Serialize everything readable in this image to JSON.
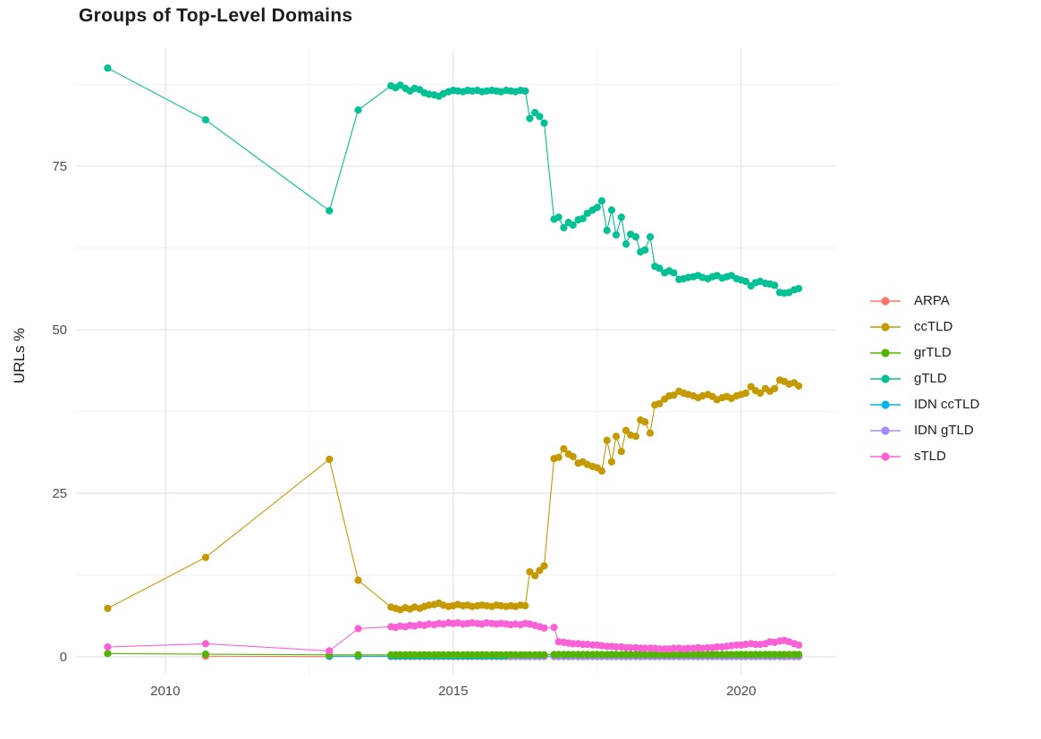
{
  "chart_data": {
    "type": "line",
    "title": "Groups of Top-Level Domains",
    "xlabel": "",
    "ylabel": "URLs %",
    "xlim": [
      2008.45,
      2021.65
    ],
    "ylim": [
      -2.73,
      92.9
    ],
    "x_ticks": [
      2010,
      2015,
      2020
    ],
    "y_ticks": [
      0,
      25,
      50,
      75
    ],
    "x_minor_gridlines": [
      2012.5,
      2017.5
    ],
    "y_minor_gridlines": [
      12.5,
      37.5,
      62.5,
      87.5
    ],
    "grid": true,
    "legend_position": "right",
    "marker": "point",
    "draw_order": [
      "ARPA",
      "IDN ccTLD",
      "IDN gTLD",
      "grTLD",
      "ccTLD",
      "gTLD",
      "sTLD"
    ],
    "x_groups": {
      "early": [
        2009.0,
        2010.7,
        2012.85,
        2013.35
      ],
      "dense1": [
        2013.92,
        2014.0,
        2014.08,
        2014.17,
        2014.25,
        2014.33,
        2014.42,
        2014.5,
        2014.58,
        2014.67,
        2014.75,
        2014.83,
        2014.92,
        2015.0,
        2015.08,
        2015.17,
        2015.25,
        2015.33,
        2015.42,
        2015.5,
        2015.58,
        2015.67,
        2015.75,
        2015.83,
        2015.92,
        2016.0,
        2016.08,
        2016.17,
        2016.25,
        2016.33,
        2016.42,
        2016.5,
        2016.58
      ],
      "dense2": [
        2016.75,
        2016.83,
        2016.92,
        2017.0,
        2017.08,
        2017.17,
        2017.25,
        2017.33,
        2017.42,
        2017.5,
        2017.58,
        2017.67,
        2017.75,
        2017.83,
        2017.92,
        2018.0,
        2018.08,
        2018.17,
        2018.25,
        2018.33,
        2018.42,
        2018.5,
        2018.58,
        2018.67,
        2018.75,
        2018.83,
        2018.92,
        2019.0,
        2019.08,
        2019.17,
        2019.25,
        2019.33,
        2019.42,
        2019.5,
        2019.58,
        2019.67,
        2019.75,
        2019.83,
        2019.92,
        2020.0,
        2020.08,
        2020.17,
        2020.25,
        2020.33,
        2020.42,
        2020.5,
        2020.58,
        2020.67,
        2020.75,
        2020.83,
        2020.92,
        2021.0
      ]
    },
    "series": [
      {
        "name": "ARPA",
        "color": "#F8766D",
        "values": {
          "early": [
            null,
            0.1,
            0.05,
            0.05
          ],
          "dense1": {
            "const": 0.05
          },
          "dense2": {
            "const": 0.05
          }
        }
      },
      {
        "name": "ccTLD",
        "color": "#C49A00",
        "values": {
          "early": [
            7.4,
            15.2,
            30.2,
            11.7
          ],
          "dense1": [
            7.6,
            7.4,
            7.2,
            7.5,
            7.3,
            7.6,
            7.4,
            7.7,
            7.9,
            8.0,
            8.2,
            7.9,
            7.7,
            7.8,
            8.0,
            7.8,
            7.9,
            7.7,
            7.8,
            7.9,
            7.8,
            7.7,
            7.9,
            7.8,
            7.7,
            7.8,
            7.7,
            7.9,
            7.8,
            13.0,
            12.4,
            13.2,
            13.9
          ],
          "dense2": [
            30.3,
            30.5,
            31.8,
            31.0,
            30.6,
            29.6,
            29.8,
            29.4,
            29.1,
            28.9,
            28.4,
            33.1,
            29.8,
            33.7,
            31.4,
            34.6,
            33.9,
            33.7,
            36.2,
            35.9,
            34.2,
            38.5,
            38.7,
            39.4,
            39.9,
            40.0,
            40.6,
            40.3,
            40.1,
            39.9,
            39.6,
            39.9,
            40.1,
            39.8,
            39.3,
            39.6,
            39.8,
            39.5,
            39.9,
            40.1,
            40.3,
            41.3,
            40.7,
            40.3,
            41.0,
            40.6,
            41.0,
            42.3,
            42.1,
            41.7,
            41.9,
            41.4
          ]
        }
      },
      {
        "name": "grTLD",
        "color": "#53B400",
        "values": {
          "early": [
            0.5,
            0.4,
            0.3,
            0.3
          ],
          "dense1": {
            "const": 0.3
          },
          "dense2": {
            "const": 0.35
          }
        }
      },
      {
        "name": "gTLD",
        "color": "#00C094",
        "values": {
          "early": [
            90.0,
            82.1,
            68.2,
            83.6
          ],
          "dense1": [
            87.3,
            87.0,
            87.4,
            86.9,
            86.5,
            86.9,
            86.7,
            86.2,
            86.0,
            85.9,
            85.7,
            86.1,
            86.4,
            86.6,
            86.5,
            86.4,
            86.6,
            86.5,
            86.6,
            86.4,
            86.5,
            86.6,
            86.5,
            86.4,
            86.6,
            86.5,
            86.4,
            86.6,
            86.5,
            82.3,
            83.2,
            82.6,
            81.6
          ],
          "dense2": [
            66.9,
            67.2,
            65.6,
            66.4,
            66.0,
            66.8,
            67.0,
            67.8,
            68.3,
            68.7,
            69.7,
            65.2,
            68.3,
            64.5,
            67.2,
            63.1,
            64.6,
            64.2,
            61.9,
            62.2,
            64.2,
            59.7,
            59.4,
            58.7,
            59.0,
            58.7,
            57.7,
            57.8,
            58.0,
            58.1,
            58.3,
            58.0,
            57.8,
            58.1,
            58.3,
            57.9,
            58.1,
            58.3,
            57.8,
            57.6,
            57.4,
            56.7,
            57.2,
            57.4,
            57.1,
            57.0,
            56.8,
            55.7,
            55.6,
            55.7,
            56.1,
            56.3
          ]
        }
      },
      {
        "name": "IDN ccTLD",
        "color": "#00B6EB",
        "values": {
          "early": [
            null,
            null,
            0.1,
            0.1
          ],
          "dense1": {
            "const": 0.1
          },
          "dense2": {
            "const": 0.1
          }
        }
      },
      {
        "name": "IDN gTLD",
        "color": "#A58AFF",
        "values": {
          "early": [
            null,
            null,
            null,
            null
          ],
          "dense1": [
            null,
            null,
            null,
            null,
            null,
            null,
            null,
            null,
            null,
            null,
            null,
            null,
            null,
            null,
            null,
            null,
            null,
            null,
            null,
            null,
            null,
            null,
            null,
            null,
            null,
            0.05,
            0.05,
            0.05,
            0.05,
            0.05,
            0.05,
            0.05,
            0.05
          ],
          "dense2": {
            "const": 0.05
          }
        }
      },
      {
        "name": "sTLD",
        "color": "#FB61D7",
        "values": {
          "early": [
            1.5,
            2.0,
            0.9,
            4.3
          ],
          "dense1": [
            4.6,
            4.5,
            4.7,
            4.6,
            4.8,
            4.7,
            4.9,
            4.8,
            5.0,
            4.9,
            5.1,
            5.0,
            5.2,
            5.1,
            5.2,
            5.0,
            5.1,
            5.2,
            5.1,
            5.0,
            5.2,
            5.1,
            5.0,
            5.1,
            5.0,
            4.9,
            5.0,
            4.9,
            5.1,
            5.0,
            4.8,
            4.6,
            4.4
          ],
          "dense2": [
            4.5,
            2.3,
            2.2,
            2.1,
            2.0,
            2.0,
            1.9,
            1.9,
            1.8,
            1.8,
            1.7,
            1.6,
            1.6,
            1.5,
            1.5,
            1.4,
            1.4,
            1.4,
            1.3,
            1.3,
            1.3,
            1.3,
            1.2,
            1.2,
            1.2,
            1.3,
            1.3,
            1.2,
            1.3,
            1.3,
            1.4,
            1.3,
            1.4,
            1.4,
            1.5,
            1.5,
            1.6,
            1.7,
            1.8,
            1.8,
            1.9,
            2.0,
            1.9,
            1.9,
            2.0,
            2.3,
            2.2,
            2.4,
            2.5,
            2.3,
            2.0,
            1.8
          ]
        }
      }
    ]
  },
  "colors": {
    "background": "#ffffff",
    "grid_major": "#e4e4e4",
    "grid_minor": "#f0f0f0",
    "tick_label": "#4d4d4d",
    "text": "#1c1c1c"
  }
}
